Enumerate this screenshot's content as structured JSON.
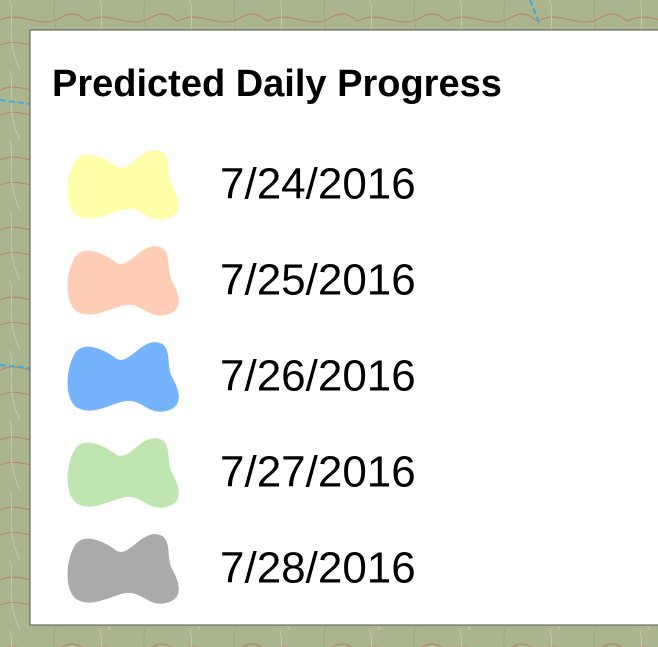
{
  "legend": {
    "title": "Predicted Daily Progress",
    "items": [
      {
        "label": "7/24/2016",
        "color": "#ffffaa"
      },
      {
        "label": "7/25/2016",
        "color": "#ffcdb5"
      },
      {
        "label": "7/26/2016",
        "color": "#76b3ff"
      },
      {
        "label": "7/27/2016",
        "color": "#bfe6b0"
      },
      {
        "label": "7/28/2016",
        "color": "#aaaaaa"
      }
    ]
  }
}
